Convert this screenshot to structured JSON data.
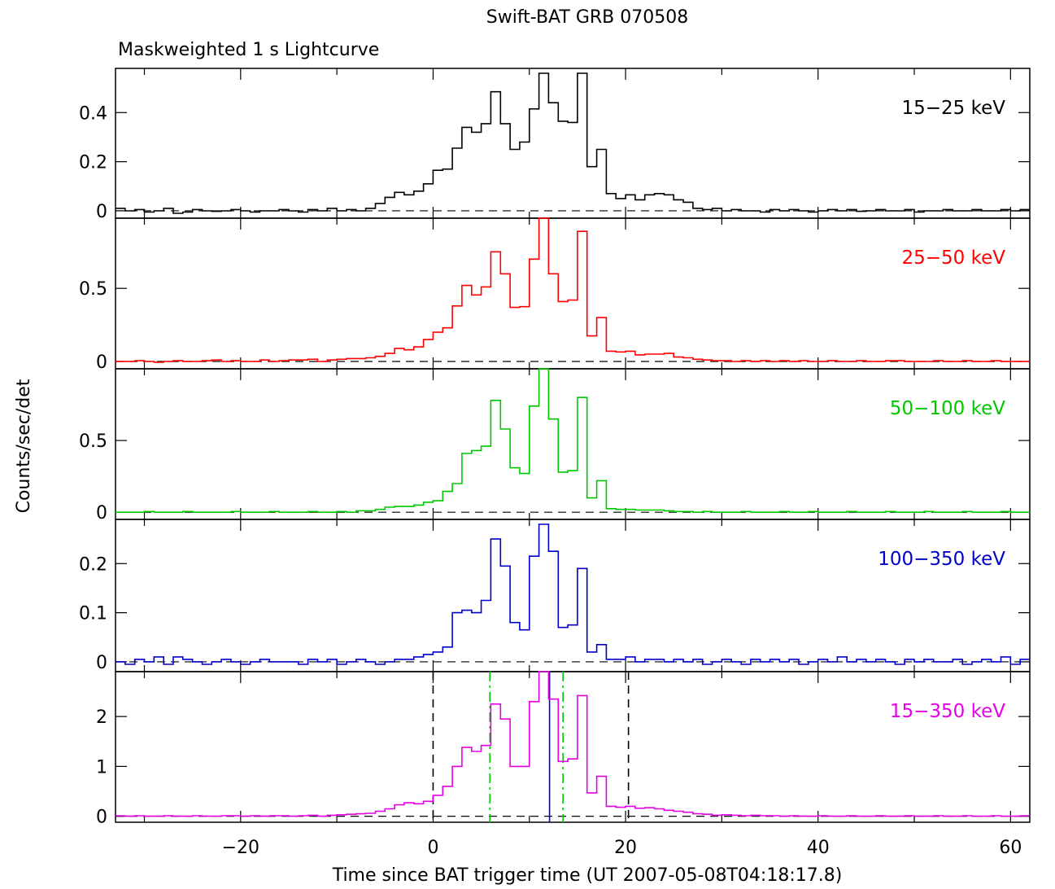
{
  "chart_data": {
    "type": "line",
    "title": "Swift-BAT GRB 070508",
    "subtitle": "Maskweighted 1 s Lightcurve",
    "xlabel": "Time since BAT trigger time (UT 2007-05-08T04:18:17.8)",
    "ylabel": "Counts/sec/det",
    "xlim": [
      -33,
      62
    ],
    "xticks": [
      -20,
      0,
      20,
      40,
      60
    ],
    "xtick_labels": [
      "−20",
      "0",
      "20",
      "40",
      "60"
    ],
    "grid": false,
    "x": [
      -33,
      -32,
      -31,
      -30,
      -29,
      -28,
      -27,
      -26,
      -25,
      -24,
      -23,
      -22,
      -21,
      -20,
      -19,
      -18,
      -17,
      -16,
      -15,
      -14,
      -13,
      -12,
      -11,
      -10,
      -9,
      -8,
      -7,
      -6,
      -5,
      -4,
      -3,
      -2,
      -1,
      0,
      1,
      2,
      3,
      4,
      5,
      6,
      7,
      8,
      9,
      10,
      11,
      12,
      13,
      14,
      15,
      16,
      17,
      18,
      19,
      20,
      21,
      22,
      23,
      24,
      25,
      26,
      27,
      28,
      29,
      30,
      31,
      32,
      33,
      34,
      35,
      36,
      37,
      38,
      39,
      40,
      41,
      42,
      43,
      44,
      45,
      46,
      47,
      48,
      49,
      50,
      51,
      52,
      53,
      54,
      55,
      56,
      57,
      58,
      59,
      60,
      61
    ],
    "panels": [
      {
        "name": "15–25 keV",
        "color": "#000000",
        "ylim": [
          -0.03,
          0.58
        ],
        "yticks": [
          0,
          0.2,
          0.4
        ],
        "ytick_labels": [
          "0",
          "0.2",
          "0.4"
        ],
        "values": [
          0.01,
          0.0,
          0.005,
          -0.005,
          0.0,
          0.01,
          -0.01,
          -0.005,
          0.005,
          0.0,
          -0.002,
          0.0,
          0.005,
          0.0,
          -0.005,
          0.0,
          0.0,
          0.005,
          0.0,
          -0.005,
          0.005,
          0.0,
          0.01,
          0.0,
          0.005,
          0.0,
          0.01,
          0.03,
          0.055,
          0.075,
          0.065,
          0.08,
          0.11,
          0.165,
          0.17,
          0.255,
          0.34,
          0.32,
          0.355,
          0.485,
          0.355,
          0.25,
          0.28,
          0.415,
          0.56,
          0.44,
          0.365,
          0.36,
          0.56,
          0.18,
          0.25,
          0.07,
          0.05,
          0.065,
          0.045,
          0.065,
          0.07,
          0.065,
          0.045,
          0.035,
          0.01,
          0.005,
          0.01,
          0.0,
          0.005,
          0.0,
          0.0,
          -0.005,
          0.005,
          0.0,
          0.005,
          0.0,
          -0.005,
          0.0,
          0.005,
          0.0,
          0.005,
          -0.002,
          0.0,
          0.005,
          0.0,
          0.0,
          0.005,
          -0.005,
          0.0,
          0.0,
          0.005,
          0.0,
          0.0,
          0.005,
          0.0,
          0.0,
          0.005,
          0.0,
          0.005
        ],
        "label_data": {
          "band": "15−25 keV"
        }
      },
      {
        "name": "25–50 keV",
        "color": "#ff0000",
        "ylim": [
          -0.05,
          0.98
        ],
        "yticks": [
          0,
          0.5
        ],
        "ytick_labels": [
          "0",
          "0.5"
        ],
        "values": [
          0.0,
          0.0,
          0.005,
          0.0,
          -0.005,
          0.0,
          0.005,
          0.0,
          0.0,
          0.005,
          0.01,
          0.0,
          0.005,
          0.0,
          0.0,
          0.01,
          0.0,
          0.005,
          0.01,
          0.01,
          0.015,
          0.0,
          0.01,
          0.015,
          0.02,
          0.02,
          0.025,
          0.035,
          0.055,
          0.09,
          0.08,
          0.1,
          0.15,
          0.2,
          0.23,
          0.38,
          0.52,
          0.455,
          0.51,
          0.75,
          0.6,
          0.37,
          0.375,
          0.7,
          0.98,
          0.6,
          0.41,
          0.42,
          0.89,
          0.175,
          0.3,
          0.07,
          0.065,
          0.07,
          0.045,
          0.05,
          0.05,
          0.055,
          0.03,
          0.025,
          0.015,
          0.01,
          0.005,
          0.005,
          0.0,
          0.005,
          0.0,
          0.005,
          0.0,
          0.005,
          0.0,
          0.005,
          0.0,
          0.0,
          0.005,
          0.0,
          0.0,
          0.005,
          0.0,
          0.0,
          0.005,
          0.005,
          0.0,
          0.0,
          0.0,
          0.005,
          0.0,
          0.0,
          0.005,
          0.0,
          0.0,
          0.005,
          0.0,
          0.0,
          0.0
        ],
        "label_data": {
          "band": "25−50 keV"
        }
      },
      {
        "name": "50–100 keV",
        "color": "#00c800",
        "ylim": [
          -0.05,
          1.0
        ],
        "yticks": [
          0,
          0.5
        ],
        "ytick_labels": [
          "0",
          "0.5"
        ],
        "values": [
          0.0,
          0.0,
          0.0,
          0.005,
          0.0,
          0.0,
          0.0,
          0.005,
          0.0,
          0.0,
          0.0,
          0.0,
          0.005,
          0.0,
          0.0,
          0.0,
          0.005,
          0.0,
          0.0,
          0.0,
          0.005,
          0.0,
          0.0,
          0.005,
          0.0,
          0.01,
          0.01,
          0.02,
          0.035,
          0.04,
          0.04,
          0.05,
          0.07,
          0.08,
          0.145,
          0.2,
          0.41,
          0.43,
          0.46,
          0.78,
          0.58,
          0.31,
          0.27,
          0.74,
          1.0,
          0.65,
          0.28,
          0.29,
          0.8,
          0.1,
          0.22,
          0.025,
          0.02,
          0.02,
          0.015,
          0.015,
          0.015,
          0.01,
          0.005,
          0.005,
          0.0,
          0.005,
          0.0,
          0.0,
          0.0,
          0.005,
          0.0,
          0.0,
          0.0,
          0.005,
          0.0,
          0.0,
          0.005,
          0.0,
          0.0,
          0.0,
          0.005,
          0.0,
          0.0,
          0.0,
          0.005,
          0.0,
          0.0,
          0.0,
          0.005,
          0.0,
          0.0,
          0.0,
          0.005,
          0.0,
          0.0,
          0.0,
          0.005,
          0.0,
          0.0
        ],
        "label_data": {
          "band": "50−100 keV"
        }
      },
      {
        "name": "100–350 keV",
        "color": "#0000c8",
        "ylim": [
          -0.02,
          0.29
        ],
        "yticks": [
          0,
          0.1,
          0.2
        ],
        "ytick_labels": [
          "0",
          "0.1",
          "0.2"
        ],
        "values": [
          0.0,
          -0.005,
          0.005,
          0.0,
          0.01,
          -0.005,
          0.01,
          0.005,
          0.0,
          -0.005,
          0.0,
          0.005,
          0.0,
          -0.005,
          0.0,
          0.005,
          0.0,
          0.0,
          0.0,
          -0.005,
          0.005,
          0.0,
          0.005,
          -0.005,
          0.0,
          0.005,
          0.0,
          -0.005,
          0.0,
          0.005,
          0.005,
          0.01,
          0.015,
          0.02,
          0.03,
          0.1,
          0.105,
          0.1,
          0.125,
          0.25,
          0.195,
          0.08,
          0.065,
          0.215,
          0.28,
          0.225,
          0.07,
          0.075,
          0.19,
          0.02,
          0.035,
          0.005,
          0.005,
          0.01,
          0.0,
          0.005,
          0.005,
          0.0,
          0.005,
          0.0,
          0.005,
          -0.005,
          0.0,
          0.005,
          0.0,
          -0.005,
          0.005,
          0.0,
          0.005,
          0.0,
          0.005,
          -0.005,
          0.0,
          0.005,
          0.0,
          0.01,
          0.0,
          0.005,
          0.0,
          0.005,
          0.0,
          -0.005,
          0.005,
          0.0,
          0.005,
          0.0,
          0.0,
          0.005,
          -0.005,
          0.0,
          0.005,
          0.0,
          0.01,
          -0.005,
          0.005
        ],
        "label_data": {
          "band": "100−350 keV"
        }
      },
      {
        "name": "15–350 keV",
        "color": "#e600e6",
        "ylim": [
          -0.12,
          2.9
        ],
        "yticks": [
          0,
          1,
          2
        ],
        "ytick_labels": [
          "0",
          "1",
          "2"
        ],
        "values": [
          0.01,
          0.0,
          0.01,
          0.0,
          0.0,
          0.01,
          0.0,
          0.0,
          0.01,
          0.0,
          0.0,
          0.01,
          0.01,
          0.0,
          0.01,
          0.0,
          0.01,
          0.01,
          0.0,
          0.01,
          0.02,
          0.0,
          0.02,
          0.03,
          0.04,
          0.05,
          0.06,
          0.1,
          0.15,
          0.23,
          0.27,
          0.25,
          0.3,
          0.42,
          0.6,
          1.0,
          1.38,
          1.3,
          1.42,
          2.25,
          1.95,
          1.0,
          1.0,
          2.3,
          2.9,
          2.35,
          1.1,
          1.15,
          2.42,
          0.47,
          0.8,
          0.2,
          0.18,
          0.2,
          0.16,
          0.17,
          0.15,
          0.12,
          0.1,
          0.08,
          0.05,
          0.04,
          0.02,
          0.03,
          0.02,
          0.01,
          0.02,
          0.01,
          0.01,
          0.0,
          0.01,
          0.0,
          0.0,
          0.01,
          0.0,
          0.0,
          0.01,
          0.0,
          0.0,
          0.01,
          0.0,
          0.0,
          0.01,
          0.0,
          0.0,
          0.01,
          0.0,
          0.0,
          0.01,
          0.0,
          0.0,
          0.01,
          0.0,
          0.0,
          0.01
        ],
        "vlines": [
          {
            "x": 0,
            "color": "#000000",
            "style": "dashed"
          },
          {
            "x": 20.3,
            "color": "#000000",
            "style": "dashed"
          },
          {
            "x": 5.9,
            "color": "#00c800",
            "style": "dashdot"
          },
          {
            "x": 13.5,
            "color": "#00c800",
            "style": "dashdot"
          },
          {
            "x": 12.1,
            "color": "#0000c8",
            "style": "solid"
          }
        ],
        "label_data": {
          "band": "15−350 keV"
        }
      }
    ]
  }
}
